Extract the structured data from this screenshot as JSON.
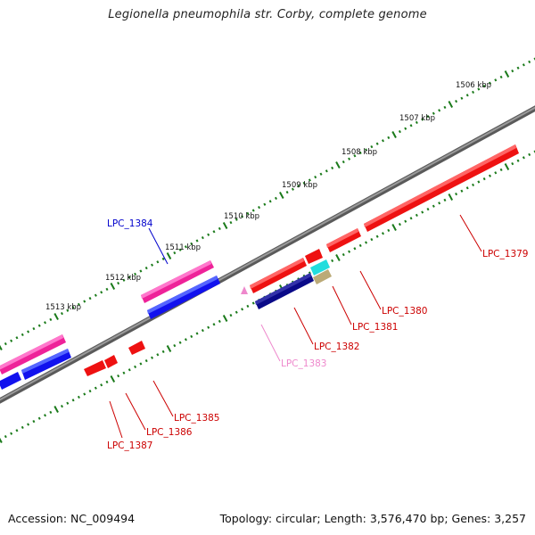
{
  "title": "Legionella pneumophila str. Corby, complete genome",
  "footer": {
    "accession": "Accession: NC_009494",
    "summary": "Topology: circular; Length: 3,576,470 bp; Genes: 3,257"
  },
  "ruler_labels": [
    "1506 kbp",
    "1507 kbp",
    "1508 kbp",
    "1509 kbp",
    "1510 kbp",
    "1511 kbp",
    "1512 kbp",
    "1513 kbp"
  ],
  "gene_labels": [
    "LPC_1379",
    "LPC_1380",
    "LPC_1381",
    "LPC_1382",
    "LPC_1383",
    "LPC_1384",
    "LPC_1385",
    "LPC_1386",
    "LPC_1387"
  ],
  "colors": {
    "backbone": "#777777",
    "tick": "#1a7a1a",
    "gene_red": "#ee1111",
    "gene_pink": "#ee2299",
    "gene_blue": "#1111ee",
    "gene_navy": "#0a0a88",
    "gene_cyan": "#22dddd",
    "gene_tan": "#bbaa77",
    "label_red": "#cc0000",
    "label_blue": "#0000cc",
    "label_pink": "#ee88cc"
  }
}
